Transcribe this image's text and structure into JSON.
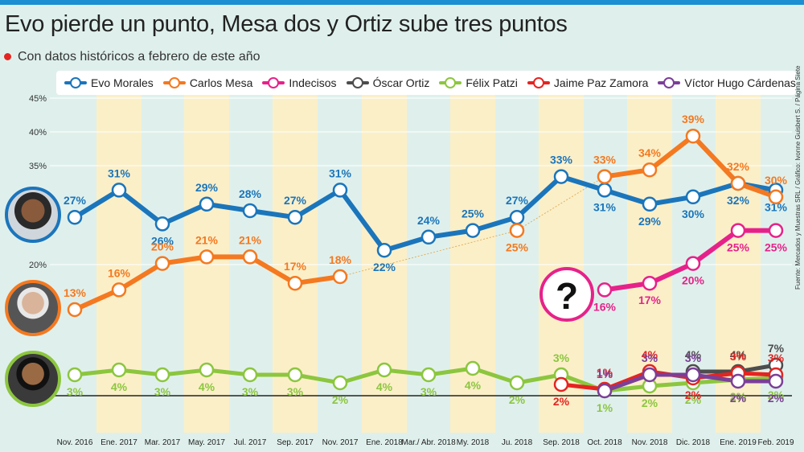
{
  "title": "Evo pierde un punto, Mesa dos y Ortiz sube tres puntos",
  "subtitle": "Con datos históricos a febrero de este año",
  "source": "Fuente: Mercados y Muestras SRL / Gráfico: Ivonne Guisbert S. / Página Siete",
  "colors": {
    "evo": "#1b75bb",
    "mesa": "#f47920",
    "indecisos": "#e6228a",
    "ortiz": "#4d4d4d",
    "patzi": "#8cc63f",
    "paz": "#e52421",
    "cardenas": "#7b3f98"
  },
  "chart_data": {
    "type": "line",
    "title": "Evo pierde un punto, Mesa dos y Ortiz sube tres puntos",
    "subtitle": "Con datos históricos a febrero de este año",
    "x": [
      "Nov. 2016",
      "Ene. 2017",
      "Mar. 2017",
      "May. 2017",
      "Jul. 2017",
      "Sep. 2017",
      "Nov. 2017",
      "Ene. 2018",
      "Mar./ Abr. 2018",
      "My. 2018",
      "Ju. 2018",
      "Sep. 2018",
      "Oct. 2018",
      "Nov. 2018",
      "Dic. 2018",
      "Ene. 2019",
      "Feb. 2019"
    ],
    "yticks": [
      "45%",
      "40%",
      "35%",
      "20%"
    ],
    "ylim": [
      0,
      45
    ],
    "unknown_marker": "?",
    "series": [
      {
        "name": "Evo Morales",
        "key": "evo",
        "values": [
          27,
          31,
          26,
          29,
          28,
          27,
          31,
          22,
          24,
          25,
          27,
          33,
          31,
          29,
          30,
          32,
          31
        ]
      },
      {
        "name": "Carlos Mesa",
        "key": "mesa",
        "values": [
          13,
          16,
          20,
          21,
          21,
          17,
          18,
          null,
          null,
          null,
          25,
          null,
          33,
          34,
          39,
          32,
          30
        ]
      },
      {
        "name": "Indecisos",
        "key": "indecisos",
        "values": [
          null,
          null,
          null,
          null,
          null,
          null,
          null,
          null,
          null,
          null,
          null,
          null,
          16,
          17,
          20,
          25,
          25
        ]
      },
      {
        "name": "Óscar Ortiz",
        "key": "ortiz",
        "values": [
          null,
          null,
          null,
          null,
          null,
          null,
          null,
          null,
          null,
          null,
          null,
          null,
          null,
          null,
          4,
          4,
          7
        ]
      },
      {
        "name": "Félix Patzi",
        "key": "patzi",
        "values": [
          3,
          4,
          3,
          4,
          3,
          3,
          2,
          4,
          3,
          4,
          2,
          3,
          1,
          2,
          2,
          2,
          2
        ]
      },
      {
        "name": "Jaime Paz Zamora",
        "key": "paz",
        "values": [
          null,
          null,
          null,
          null,
          null,
          null,
          null,
          null,
          null,
          null,
          null,
          2,
          1,
          4,
          2,
          3,
          3
        ]
      },
      {
        "name": "Víctor Hugo Cárdenas",
        "key": "cardenas",
        "values": [
          null,
          null,
          null,
          null,
          null,
          null,
          null,
          null,
          null,
          null,
          null,
          null,
          1,
          3,
          3,
          2,
          2
        ]
      }
    ]
  }
}
